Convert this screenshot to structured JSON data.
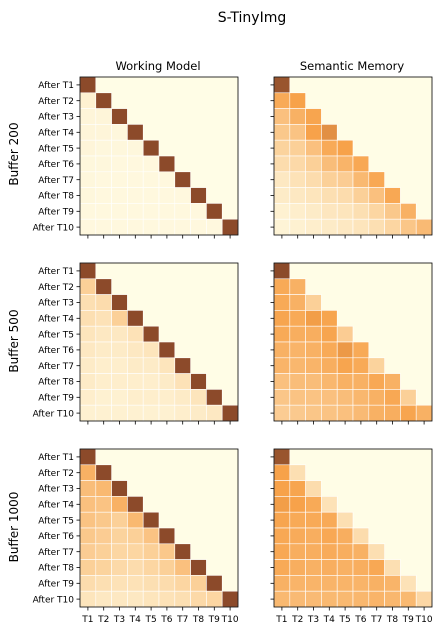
{
  "figure": {
    "title": "S-TinyImg",
    "column_titles": [
      "Working Model",
      "Semantic Memory"
    ],
    "row_labels": [
      "Buffer 200",
      "Buffer 500",
      "Buffer 1000"
    ]
  },
  "chart_data": {
    "type": "heatmap",
    "title": "S-TinyImg",
    "x_tick_labels": [
      "T1",
      "T2",
      "T3",
      "T4",
      "T5",
      "T6",
      "T7",
      "T8",
      "T9",
      "T10"
    ],
    "y_tick_labels": [
      "After T1",
      "After T2",
      "After T3",
      "After T4",
      "After T5",
      "After T6",
      "After T7",
      "After T8",
      "After T9",
      "After T10"
    ],
    "color_scale": {
      "low": "#fffde6",
      "mid": "#f7a24a",
      "high": "#8c4a2a",
      "range": [
        0,
        1
      ]
    },
    "grid_lines": true,
    "panels": [
      {
        "row": "Buffer 200",
        "column": "Working Model",
        "values": [
          [
            1.0
          ],
          [
            0.08,
            1.0
          ],
          [
            0.05,
            0.05,
            1.0
          ],
          [
            0.05,
            0.05,
            0.04,
            1.0
          ],
          [
            0.05,
            0.04,
            0.04,
            0.04,
            1.0
          ],
          [
            0.04,
            0.04,
            0.03,
            0.03,
            0.03,
            1.0
          ],
          [
            0.04,
            0.03,
            0.03,
            0.03,
            0.03,
            0.03,
            1.0
          ],
          [
            0.04,
            0.03,
            0.03,
            0.03,
            0.03,
            0.03,
            0.03,
            1.0
          ],
          [
            0.03,
            0.03,
            0.03,
            0.03,
            0.03,
            0.03,
            0.03,
            0.03,
            1.0
          ],
          [
            0.03,
            0.03,
            0.03,
            0.03,
            0.03,
            0.03,
            0.03,
            0.03,
            0.03,
            1.0
          ]
        ]
      },
      {
        "row": "Buffer 200",
        "column": "Semantic Memory",
        "values": [
          [
            0.95
          ],
          [
            0.55,
            0.6
          ],
          [
            0.4,
            0.5,
            0.58
          ],
          [
            0.35,
            0.38,
            0.6,
            0.68
          ],
          [
            0.28,
            0.3,
            0.4,
            0.55,
            0.6
          ],
          [
            0.22,
            0.24,
            0.3,
            0.42,
            0.48,
            0.56
          ],
          [
            0.14,
            0.18,
            0.22,
            0.3,
            0.32,
            0.45,
            0.56
          ],
          [
            0.12,
            0.14,
            0.16,
            0.2,
            0.22,
            0.3,
            0.4,
            0.56
          ],
          [
            0.08,
            0.1,
            0.12,
            0.15,
            0.16,
            0.2,
            0.26,
            0.35,
            0.5
          ],
          [
            0.06,
            0.08,
            0.1,
            0.12,
            0.14,
            0.16,
            0.2,
            0.26,
            0.36,
            0.44
          ]
        ]
      },
      {
        "row": "Buffer 500",
        "column": "Working Model",
        "values": [
          [
            1.0
          ],
          [
            0.3,
            1.0
          ],
          [
            0.2,
            0.22,
            1.0
          ],
          [
            0.2,
            0.18,
            0.3,
            1.0
          ],
          [
            0.16,
            0.14,
            0.14,
            0.18,
            1.0
          ],
          [
            0.14,
            0.12,
            0.12,
            0.14,
            0.16,
            1.0
          ],
          [
            0.12,
            0.1,
            0.1,
            0.12,
            0.12,
            0.16,
            1.0
          ],
          [
            0.12,
            0.1,
            0.1,
            0.1,
            0.1,
            0.12,
            0.18,
            1.0
          ],
          [
            0.1,
            0.08,
            0.08,
            0.1,
            0.1,
            0.1,
            0.12,
            0.16,
            1.0
          ],
          [
            0.08,
            0.08,
            0.08,
            0.08,
            0.08,
            0.08,
            0.1,
            0.12,
            0.14,
            1.0
          ]
        ]
      },
      {
        "row": "Buffer 500",
        "column": "Semantic Memory",
        "values": [
          [
            1.0
          ],
          [
            0.55,
            0.5
          ],
          [
            0.55,
            0.5,
            0.3
          ],
          [
            0.58,
            0.55,
            0.62,
            0.58
          ],
          [
            0.55,
            0.52,
            0.52,
            0.58,
            0.32
          ],
          [
            0.5,
            0.48,
            0.5,
            0.55,
            0.64,
            0.55
          ],
          [
            0.48,
            0.46,
            0.48,
            0.52,
            0.58,
            0.55,
            0.28
          ],
          [
            0.4,
            0.42,
            0.42,
            0.46,
            0.5,
            0.5,
            0.56,
            0.5
          ],
          [
            0.36,
            0.38,
            0.38,
            0.4,
            0.42,
            0.46,
            0.5,
            0.56,
            0.3
          ],
          [
            0.32,
            0.34,
            0.36,
            0.38,
            0.4,
            0.44,
            0.5,
            0.52,
            0.58,
            0.5
          ]
        ]
      },
      {
        "row": "Buffer 1000",
        "column": "Working Model",
        "values": [
          [
            1.0
          ],
          [
            0.5,
            1.0
          ],
          [
            0.42,
            0.45,
            1.0
          ],
          [
            0.4,
            0.38,
            0.5,
            1.0
          ],
          [
            0.38,
            0.35,
            0.3,
            0.45,
            1.0
          ],
          [
            0.35,
            0.32,
            0.28,
            0.3,
            0.38,
            1.0
          ],
          [
            0.32,
            0.3,
            0.26,
            0.26,
            0.3,
            0.35,
            1.0
          ],
          [
            0.3,
            0.28,
            0.24,
            0.22,
            0.26,
            0.3,
            0.4,
            1.0
          ],
          [
            0.22,
            0.2,
            0.18,
            0.18,
            0.2,
            0.22,
            0.26,
            0.3,
            1.0
          ],
          [
            0.16,
            0.14,
            0.14,
            0.14,
            0.16,
            0.18,
            0.2,
            0.24,
            0.26,
            1.0
          ]
        ]
      },
      {
        "row": "Buffer 1000",
        "column": "Semantic Memory",
        "values": [
          [
            0.95
          ],
          [
            0.6,
            0.2
          ],
          [
            0.6,
            0.58,
            0.22
          ],
          [
            0.62,
            0.6,
            0.55,
            0.18
          ],
          [
            0.58,
            0.55,
            0.55,
            0.55,
            0.2
          ],
          [
            0.56,
            0.54,
            0.52,
            0.56,
            0.52,
            0.22
          ],
          [
            0.56,
            0.52,
            0.52,
            0.54,
            0.52,
            0.5,
            0.2
          ],
          [
            0.55,
            0.52,
            0.5,
            0.52,
            0.5,
            0.52,
            0.56,
            0.2
          ],
          [
            0.5,
            0.48,
            0.48,
            0.48,
            0.48,
            0.48,
            0.5,
            0.48,
            0.18
          ],
          [
            0.45,
            0.44,
            0.44,
            0.45,
            0.45,
            0.46,
            0.48,
            0.46,
            0.45,
            0.25
          ]
        ]
      }
    ]
  }
}
